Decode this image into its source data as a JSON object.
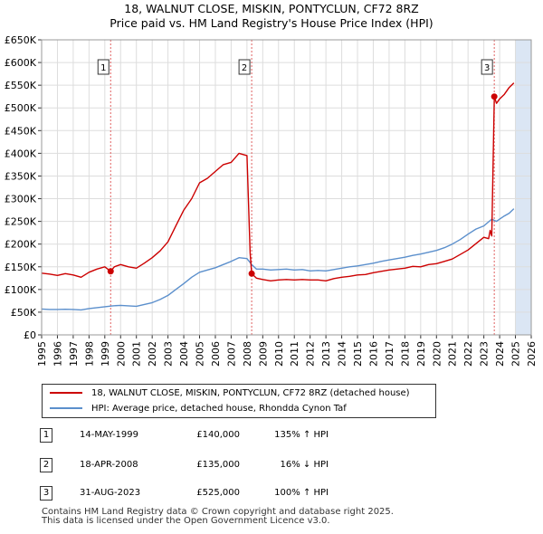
{
  "title_line1": "18, WALNUT CLOSE, MISKIN, PONTYCLUN, CF72 8RZ",
  "title_line2": "Price paid vs. HM Land Registry's House Price Index (HPI)",
  "colors": {
    "property_line": "#cc0000",
    "hpi_line": "#5b8fcc",
    "future_shade": "#dbe6f4",
    "grid": "#dddddd",
    "marker_line": "#e06060"
  },
  "chart_data": {
    "type": "line",
    "title": "Price paid vs. HM Land Registry's House Price Index (HPI)",
    "xlabel": "",
    "ylabel": "",
    "xlim": [
      1995,
      2026
    ],
    "ylim": [
      0,
      650000
    ],
    "y_ticks": [
      0,
      50000,
      100000,
      150000,
      200000,
      250000,
      300000,
      350000,
      400000,
      450000,
      500000,
      550000,
      600000,
      650000
    ],
    "y_tick_labels": [
      "£0",
      "£50K",
      "£100K",
      "£150K",
      "£200K",
      "£250K",
      "£300K",
      "£350K",
      "£400K",
      "£450K",
      "£500K",
      "£550K",
      "£600K",
      "£650K"
    ],
    "x_ticks": [
      1995,
      1996,
      1997,
      1998,
      1999,
      2000,
      2001,
      2002,
      2003,
      2004,
      2005,
      2006,
      2007,
      2008,
      2009,
      2010,
      2011,
      2012,
      2013,
      2014,
      2015,
      2016,
      2017,
      2018,
      2019,
      2020,
      2021,
      2022,
      2023,
      2024,
      2025,
      2026
    ],
    "grid": true,
    "future_from": 2025.0,
    "series": [
      {
        "name": "18, WALNUT CLOSE, MISKIN, PONTYCLUN, CF72 8RZ (detached house)",
        "color": "#cc0000",
        "x": [
          1995.0,
          1995.5,
          1996.0,
          1996.5,
          1997.0,
          1997.5,
          1998.0,
          1998.5,
          1999.0,
          1999.37,
          1999.6,
          2000.0,
          2000.5,
          2001.0,
          2001.5,
          2002.0,
          2002.5,
          2003.0,
          2003.5,
          2004.0,
          2004.5,
          2005.0,
          2005.5,
          2006.0,
          2006.5,
          2007.0,
          2007.5,
          2008.0,
          2008.2,
          2008.3,
          2008.6,
          2009.0,
          2009.5,
          2010.0,
          2010.5,
          2011.0,
          2011.5,
          2012.0,
          2012.5,
          2013.0,
          2013.5,
          2014.0,
          2014.5,
          2015.0,
          2015.5,
          2016.0,
          2016.5,
          2017.0,
          2017.5,
          2018.0,
          2018.5,
          2019.0,
          2019.5,
          2020.0,
          2020.5,
          2021.0,
          2021.5,
          2022.0,
          2022.5,
          2023.0,
          2023.3,
          2023.4,
          2023.5,
          2023.66,
          2023.8,
          2024.0,
          2024.3,
          2024.6,
          2024.9
        ],
        "values": [
          136000,
          134000,
          131000,
          135000,
          132000,
          127000,
          138000,
          145000,
          150000,
          140000,
          150000,
          155000,
          150000,
          147000,
          158000,
          170000,
          185000,
          205000,
          240000,
          275000,
          300000,
          335000,
          345000,
          360000,
          375000,
          380000,
          400000,
          395000,
          180000,
          135000,
          125000,
          122000,
          119000,
          121000,
          122000,
          121000,
          122000,
          121000,
          121000,
          119000,
          124000,
          127000,
          129000,
          132000,
          133000,
          137000,
          140000,
          143000,
          145000,
          147000,
          151000,
          150000,
          155000,
          157000,
          162000,
          167000,
          177000,
          187000,
          201000,
          215000,
          212000,
          230000,
          218000,
          525000,
          510000,
          520000,
          530000,
          545000,
          555000
        ]
      },
      {
        "name": "HPI: Average price, detached house, Rhondda Cynon Taf",
        "color": "#5b8fcc",
        "x": [
          1995.0,
          1995.5,
          1996.0,
          1996.5,
          1997.0,
          1997.5,
          1998.0,
          1998.5,
          1999.0,
          1999.5,
          2000.0,
          2000.5,
          2001.0,
          2001.5,
          2002.0,
          2002.5,
          2003.0,
          2003.5,
          2004.0,
          2004.5,
          2005.0,
          2005.5,
          2006.0,
          2006.5,
          2007.0,
          2007.5,
          2008.0,
          2008.3,
          2008.6,
          2009.0,
          2009.5,
          2010.0,
          2010.5,
          2011.0,
          2011.5,
          2012.0,
          2012.5,
          2013.0,
          2013.5,
          2014.0,
          2014.5,
          2015.0,
          2015.5,
          2016.0,
          2016.5,
          2017.0,
          2017.5,
          2018.0,
          2018.5,
          2019.0,
          2019.5,
          2020.0,
          2020.5,
          2021.0,
          2021.5,
          2022.0,
          2022.5,
          2023.0,
          2023.5,
          2023.8,
          2024.0,
          2024.3,
          2024.6,
          2024.9
        ],
        "values": [
          57000,
          56000,
          56000,
          56500,
          56000,
          55000,
          58000,
          60000,
          62000,
          64000,
          65000,
          64000,
          63000,
          67000,
          71000,
          78000,
          87000,
          100000,
          113000,
          127000,
          138000,
          143000,
          148000,
          155000,
          162000,
          170000,
          168000,
          155000,
          145000,
          145000,
          143000,
          144000,
          145000,
          143000,
          144000,
          141000,
          142000,
          141000,
          144000,
          147000,
          150000,
          152000,
          155000,
          158000,
          162000,
          165000,
          168000,
          171000,
          175000,
          178000,
          182000,
          186000,
          192000,
          200000,
          210000,
          222000,
          233000,
          240000,
          255000,
          250000,
          255000,
          262000,
          268000,
          278000
        ]
      }
    ],
    "sale_markers": [
      {
        "label": "1",
        "x": 1999.37,
        "value": 140000
      },
      {
        "label": "2",
        "x": 2008.3,
        "value": 135000
      },
      {
        "label": "3",
        "x": 2023.66,
        "value": 525000
      }
    ]
  },
  "legend": {
    "property_label": "18, WALNUT CLOSE, MISKIN, PONTYCLUN, CF72 8RZ (detached house)",
    "hpi_label": "HPI: Average price, detached house, Rhondda Cynon Taf"
  },
  "sales": [
    {
      "num": "1",
      "date": "14-MAY-1999",
      "price": "£140,000",
      "hpi": "135% ↑ HPI"
    },
    {
      "num": "2",
      "date": "18-APR-2008",
      "price": "£135,000",
      "hpi": "16% ↓ HPI"
    },
    {
      "num": "3",
      "date": "31-AUG-2023",
      "price": "£525,000",
      "hpi": "100% ↑ HPI"
    }
  ],
  "footer_line1": "Contains HM Land Registry data © Crown copyright and database right 2025.",
  "footer_line2": "This data is licensed under the Open Government Licence v3.0."
}
